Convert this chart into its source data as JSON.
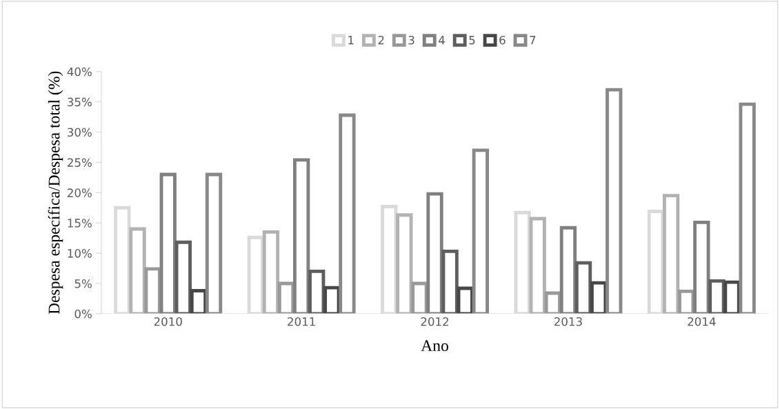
{
  "chart_data": {
    "type": "bar",
    "xlabel": "Ano",
    "ylabel": "Despesa específica/Despesa total (%)",
    "categories": [
      "2010",
      "2011",
      "2012",
      "2013",
      "2014"
    ],
    "series": [
      {
        "name": "1",
        "color": "#dadada",
        "values": [
          17.5,
          12.6,
          17.7,
          16.7,
          16.9
        ]
      },
      {
        "name": "2",
        "color": "#b2b2b2",
        "values": [
          14,
          13.5,
          16.3,
          15.7,
          19.5
        ]
      },
      {
        "name": "3",
        "color": "#999999",
        "values": [
          7.4,
          5,
          5,
          3.4,
          3.7
        ]
      },
      {
        "name": "4",
        "color": "#808080",
        "values": [
          23,
          25.4,
          19.8,
          14.2,
          15.1
        ]
      },
      {
        "name": "5",
        "color": "#5e5e5e",
        "values": [
          11.8,
          7,
          10.3,
          8.4,
          5.4
        ]
      },
      {
        "name": "6",
        "color": "#474747",
        "values": [
          3.8,
          4.3,
          4.2,
          5.1,
          5.2
        ]
      },
      {
        "name": "7",
        "color": "#888888",
        "values": [
          23,
          32.8,
          27,
          37,
          34.6
        ]
      }
    ],
    "ylim": [
      0,
      40
    ],
    "yticks": [
      {
        "value": 0,
        "label": "0%"
      },
      {
        "value": 5,
        "label": "5%"
      },
      {
        "value": 10,
        "label": "10%"
      },
      {
        "value": 15,
        "label": "15%"
      },
      {
        "value": 20,
        "label": "20%"
      },
      {
        "value": 25,
        "label": "25%"
      },
      {
        "value": 30,
        "label": "30%"
      },
      {
        "value": 35,
        "label": "35%"
      },
      {
        "value": 40,
        "label": "40%"
      }
    ],
    "grid": false,
    "legend": "top"
  }
}
